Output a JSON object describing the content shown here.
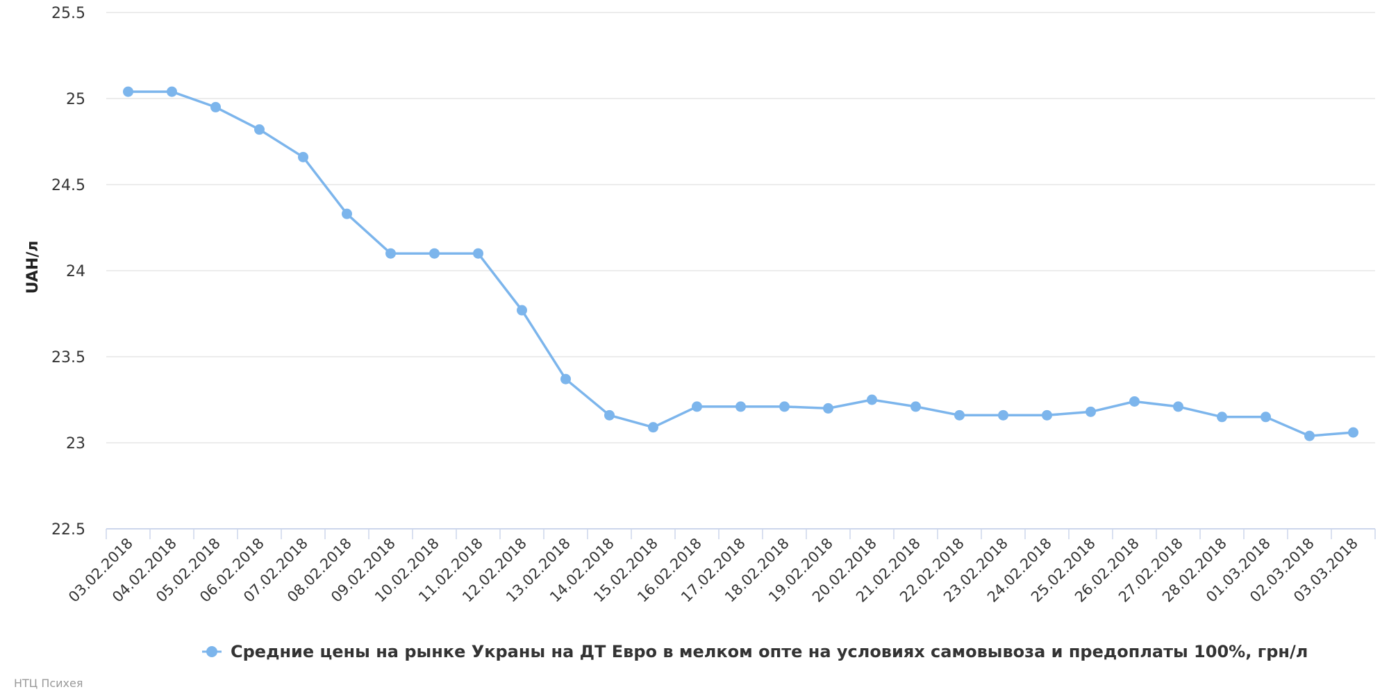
{
  "chart_data": {
    "type": "line",
    "ylabel": "UAH/л",
    "ylim": [
      22.5,
      25.5
    ],
    "yticks": [
      "22.5",
      "23",
      "23.5",
      "24",
      "24.5",
      "25",
      "25.5"
    ],
    "grid": true,
    "legend_position": "bottom-center",
    "categories": [
      "03.02.2018",
      "04.02.2018",
      "05.02.2018",
      "06.02.2018",
      "07.02.2018",
      "08.02.2018",
      "09.02.2018",
      "10.02.2018",
      "11.02.2018",
      "12.02.2018",
      "13.02.2018",
      "14.02.2018",
      "15.02.2018",
      "16.02.2018",
      "17.02.2018",
      "18.02.2018",
      "19.02.2018",
      "20.02.2018",
      "21.02.2018",
      "22.02.2018",
      "23.02.2018",
      "24.02.2018",
      "25.02.2018",
      "26.02.2018",
      "27.02.2018",
      "28.02.2018",
      "01.03.2018",
      "02.03.2018",
      "03.03.2018"
    ],
    "series": [
      {
        "name": "Средние цены на рынке Украны на ДТ Евро в мелком опте на условиях самовывоза и предоплаты 100%, грн/л",
        "color": "#7cb5ec",
        "values": [
          25.04,
          25.04,
          24.95,
          24.82,
          24.66,
          24.33,
          24.1,
          24.1,
          24.1,
          23.77,
          23.37,
          23.16,
          23.09,
          23.21,
          23.21,
          23.21,
          23.2,
          23.25,
          23.21,
          23.16,
          23.16,
          23.16,
          23.18,
          23.24,
          23.21,
          23.15,
          23.15,
          23.04,
          23.06
        ]
      }
    ]
  },
  "credit": "НТЦ Психея"
}
